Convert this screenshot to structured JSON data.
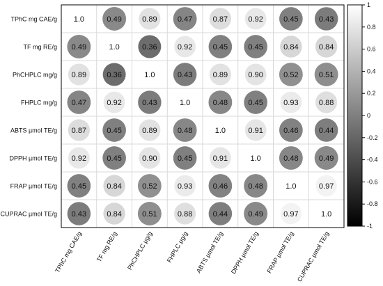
{
  "chart_data": {
    "type": "heatmap",
    "title": "",
    "row_labels": [
      "TPhC mg CAE/g",
      "TF mg RE/g",
      "PhCHPLC mg/g",
      "FHPLC mg/g",
      "ABTS µmol TE/g",
      "DPPH µmol TE/g",
      "FRAP µmol TE/g",
      "CUPRAC µmol TE/g"
    ],
    "column_labels": [
      "TPhC mg CAE/g",
      "TF mg RE/g",
      "PhCHPLC µg/g",
      "FHPLC µg/g",
      "ABTS µmol TE/g",
      "DPPH µmol TE/g",
      "FRAP µmol TE/g",
      "CUPRAC µmol TE/g"
    ],
    "value_labels": [
      [
        "1.0",
        "0.49",
        "0.89",
        "0.47",
        "0.87",
        "0.92",
        "0.45",
        "0.43"
      ],
      [
        "0.49",
        "1.0",
        "0.36",
        "0.92",
        "0.45",
        "0.45",
        "0.84",
        "0.84"
      ],
      [
        "0.89",
        "0.36",
        "1.0",
        "0.43",
        "0.89",
        "0.90",
        "0.52",
        "0.51"
      ],
      [
        "0.47",
        "0.92",
        "0.43",
        "1.0",
        "0.48",
        "0.45",
        "0.93",
        "0.88"
      ],
      [
        "0.87",
        "0.45",
        "0.89",
        "0.48",
        "1.0",
        "0.91",
        "0.46",
        "0.44"
      ],
      [
        "0.92",
        "0.45",
        "0.90",
        "0.45",
        "0.91",
        "1.0",
        "0.48",
        "0.49"
      ],
      [
        "0.45",
        "0.84",
        "0.52",
        "0.93",
        "0.46",
        "0.48",
        "1.0",
        "0.97"
      ],
      [
        "0.43",
        "0.84",
        "0.51",
        "0.88",
        "0.44",
        "0.49",
        "0.97",
        "1.0"
      ]
    ],
    "color_scale": {
      "min": -1,
      "max": 1,
      "min_color": "#000000",
      "max_color": "#ffffff",
      "tick_labels": [
        "1",
        "0.8",
        "0.6",
        "0.4",
        "0.2",
        "0",
        "-0.2",
        "-0.4",
        "-0.6",
        "-0.8",
        "-1"
      ]
    },
    "legend_position": "right",
    "grid": true
  }
}
